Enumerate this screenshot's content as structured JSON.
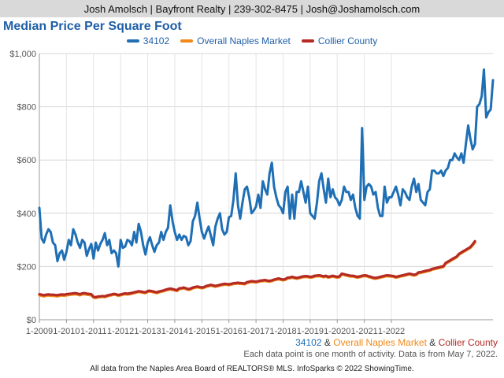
{
  "header": {
    "contact": "Josh Amolsch | Bayfront Realty | 239-302-8475 | Josh@Joshamolsch.com"
  },
  "footer": {
    "series_34102": "34102",
    "amp": "&",
    "series_naples": "Overall Naples Market",
    "series_collier": "Collier County",
    "note": "Each data point is one month of activity. Data is from May 7, 2022.",
    "credit": "All data from the Naples Area Board of REALTORS® MLS. InfoSparks © 2022 ShowingTime."
  },
  "chart_data": {
    "type": "line",
    "title": "Median Price Per Square Foot",
    "xlabel": "",
    "ylabel": "",
    "ylim": [
      0,
      1000
    ],
    "yticks": [
      0,
      200,
      400,
      600,
      800,
      1000
    ],
    "ytick_labels": [
      "$0",
      "$200",
      "$400",
      "$600",
      "$800",
      "$1,000"
    ],
    "x_start": "2009-01",
    "x_end": "2022-04",
    "xticks": [
      "1-2009",
      "1-2010",
      "1-2011",
      "1-2012",
      "1-2013",
      "1-2014",
      "1-2015",
      "1-2016",
      "1-2017",
      "1-2018",
      "1-2019",
      "1-2020",
      "1-2021",
      "1-2022"
    ],
    "grid": true,
    "legend": "top-center",
    "series": [
      {
        "name": "34102",
        "color": "#1f6fb5",
        "values": [
          420,
          305,
          290,
          320,
          340,
          330,
          290,
          280,
          220,
          250,
          260,
          225,
          255,
          300,
          280,
          340,
          320,
          290,
          270,
          300,
          290,
          240,
          265,
          285,
          230,
          290,
          260,
          285,
          300,
          325,
          280,
          300,
          250,
          260,
          250,
          200,
          300,
          270,
          275,
          300,
          295,
          280,
          330,
          290,
          360,
          330,
          280,
          245,
          290,
          310,
          280,
          255,
          280,
          290,
          330,
          300,
          330,
          345,
          430,
          370,
          330,
          300,
          320,
          300,
          315,
          310,
          280,
          295,
          370,
          390,
          440,
          380,
          330,
          305,
          330,
          350,
          315,
          280,
          350,
          380,
          400,
          340,
          320,
          330,
          385,
          390,
          450,
          550,
          430,
          380,
          440,
          490,
          500,
          460,
          400,
          410,
          425,
          470,
          420,
          520,
          490,
          470,
          550,
          590,
          500,
          460,
          430,
          420,
          400,
          480,
          500,
          380,
          470,
          380,
          480,
          480,
          520,
          480,
          440,
          500,
          400,
          390,
          380,
          440,
          520,
          550,
          490,
          440,
          530,
          460,
          490,
          460,
          450,
          430,
          450,
          500,
          480,
          480,
          450,
          470,
          420,
          390,
          380,
          720,
          450,
          500,
          510,
          500,
          470,
          480,
          420,
          390,
          390,
          500,
          440,
          460,
          460,
          480,
          500,
          470,
          430,
          490,
          480,
          460,
          450,
          500,
          530,
          480,
          510,
          450,
          440,
          430,
          480,
          490,
          560,
          560,
          550,
          550,
          560,
          540,
          560,
          570,
          600,
          600,
          625,
          610,
          600,
          625,
          590,
          660,
          730,
          680,
          640,
          660,
          800,
          810,
          840,
          940,
          760,
          780,
          790,
          900
        ]
      },
      {
        "name": "Overall Naples Market",
        "color": "#f0891a",
        "values": [
          92,
          90,
          88,
          90,
          91,
          90,
          90,
          89,
          88,
          90,
          91,
          90,
          92,
          93,
          94,
          95,
          96,
          94,
          92,
          95,
          96,
          94,
          93,
          92,
          83,
          82,
          84,
          85,
          86,
          85,
          88,
          90,
          92,
          94,
          93,
          90,
          92,
          94,
          96,
          95,
          96,
          98,
          100,
          102,
          104,
          103,
          101,
          100,
          105,
          106,
          104,
          102,
          100,
          103,
          105,
          107,
          110,
          112,
          114,
          112,
          110,
          108,
          115,
          116,
          118,
          115,
          112,
          114,
          118,
          120,
          122,
          120,
          118,
          120,
          124,
          126,
          128,
          126,
          124,
          126,
          128,
          130,
          132,
          131,
          130,
          132,
          134,
          135,
          136,
          135,
          134,
          133,
          138,
          140,
          142,
          141,
          140,
          142,
          144,
          145,
          146,
          144,
          143,
          145,
          148,
          150,
          152,
          150,
          148,
          150,
          155,
          156,
          158,
          156,
          154,
          156,
          158,
          160,
          161,
          160,
          158,
          159,
          162,
          163,
          164,
          162,
          160,
          162,
          158,
          160,
          162,
          160,
          158,
          160,
          170,
          168,
          166,
          164,
          162,
          162,
          160,
          158,
          160,
          162,
          164,
          163,
          160,
          158,
          155,
          154,
          156,
          158,
          160,
          162,
          164,
          163,
          162,
          161,
          158,
          160,
          162,
          164,
          166,
          168,
          170,
          168,
          166,
          168,
          175,
          176,
          178,
          180,
          182,
          184,
          188,
          190,
          192,
          194,
          196,
          198,
          210,
          215,
          220,
          225,
          230,
          235,
          245,
          250,
          255,
          260,
          265,
          270,
          280,
          290
        ]
      },
      {
        "name": "Collier County",
        "color": "#b52a23",
        "values": [
          96,
          94,
          92,
          94,
          95,
          94,
          94,
          93,
          92,
          94,
          95,
          94,
          96,
          97,
          98,
          99,
          100,
          98,
          96,
          99,
          100,
          98,
          97,
          96,
          86,
          85,
          87,
          88,
          89,
          88,
          91,
          93,
          95,
          97,
          96,
          93,
          95,
          97,
          99,
          98,
          99,
          101,
          103,
          105,
          107,
          106,
          104,
          103,
          108,
          109,
          107,
          105,
          103,
          106,
          108,
          110,
          113,
          115,
          117,
          115,
          113,
          111,
          118,
          119,
          121,
          118,
          115,
          117,
          121,
          123,
          125,
          123,
          121,
          123,
          127,
          129,
          131,
          129,
          127,
          129,
          131,
          133,
          135,
          134,
          133,
          135,
          137,
          138,
          139,
          138,
          137,
          136,
          141,
          143,
          145,
          144,
          143,
          145,
          147,
          148,
          149,
          147,
          146,
          148,
          151,
          153,
          155,
          153,
          151,
          153,
          158,
          159,
          161,
          159,
          157,
          159,
          161,
          163,
          164,
          163,
          161,
          162,
          165,
          166,
          167,
          165,
          163,
          165,
          161,
          163,
          165,
          163,
          161,
          163,
          173,
          171,
          169,
          167,
          165,
          165,
          163,
          161,
          163,
          165,
          167,
          166,
          163,
          161,
          158,
          157,
          159,
          161,
          163,
          165,
          167,
          166,
          165,
          164,
          161,
          163,
          165,
          167,
          169,
          171,
          173,
          171,
          169,
          171,
          178,
          179,
          181,
          183,
          185,
          187,
          191,
          193,
          195,
          197,
          199,
          201,
          213,
          218,
          223,
          228,
          233,
          238,
          248,
          253,
          258,
          263,
          268,
          273,
          283,
          295
        ]
      }
    ]
  }
}
